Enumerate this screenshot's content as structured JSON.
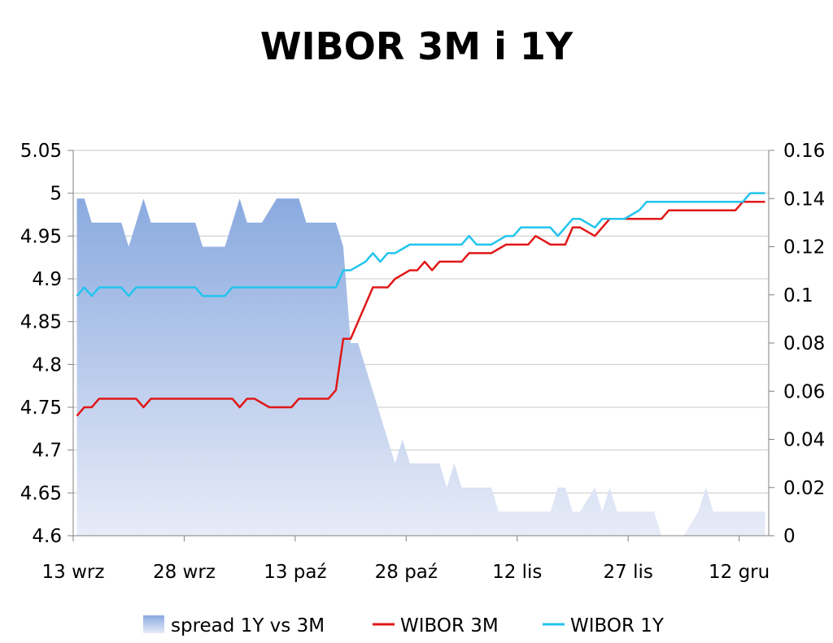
{
  "chart_data": {
    "type": "line",
    "title": "WIBOR 3M i 1Y",
    "x_tick_labels": [
      "13 wrz",
      "28 wrz",
      "13 paź",
      "28 paź",
      "12 lis",
      "27 lis",
      "12 gru"
    ],
    "ylim_left": [
      4.6,
      5.05
    ],
    "yticks_left": [
      "4.6",
      "4.65",
      "4.7",
      "4.75",
      "4.8",
      "4.85",
      "4.9",
      "4.95",
      "5",
      "5.05"
    ],
    "ylim_right": [
      0,
      0.16
    ],
    "yticks_right": [
      "0",
      "0.02",
      "0.04",
      "0.06",
      "0.08",
      "0.1",
      "0.12",
      "0.14",
      "0.16"
    ],
    "grid": true,
    "legend_position": "bottom",
    "series": [
      {
        "name": "spread 1Y vs 3M",
        "type": "area",
        "axis": "right",
        "color": "#8fb0e0",
        "values": [
          0.14,
          0.14,
          0.13,
          0.13,
          0.13,
          0.13,
          0.13,
          0.12,
          0.13,
          0.14,
          0.13,
          0.13,
          0.13,
          0.13,
          0.13,
          0.13,
          0.13,
          0.12,
          0.12,
          0.12,
          0.12,
          0.13,
          0.14,
          0.13,
          0.13,
          0.13,
          0.135,
          0.14,
          0.14,
          0.14,
          0.14,
          0.13,
          0.13,
          0.13,
          0.13,
          0.13,
          0.12,
          0.08,
          0.08,
          0.07,
          0.06,
          0.05,
          0.04,
          0.03,
          0.04,
          0.03,
          0.03,
          0.03,
          0.03,
          0.03,
          0.02,
          0.03,
          0.02,
          0.02,
          0.02,
          0.02,
          0.02,
          0.01,
          0.01,
          0.01,
          0.01,
          0.01,
          0.01,
          0.01,
          0.01,
          0.02,
          0.02,
          0.01,
          0.01,
          0.015,
          0.02,
          0.01,
          0.02,
          0.01,
          0.01,
          0.01,
          0.01,
          0.01,
          0.01,
          0.0,
          0.0,
          0.0,
          0.0,
          0.005,
          0.01,
          0.02,
          0.01,
          0.01,
          0.01,
          0.01,
          0.01,
          0.01,
          0.01,
          0.01
        ]
      },
      {
        "name": "WIBOR 3M",
        "type": "line",
        "axis": "left",
        "color": "#e01818",
        "values": [
          4.74,
          4.75,
          4.75,
          4.76,
          4.76,
          4.76,
          4.76,
          4.76,
          4.76,
          4.75,
          4.76,
          4.76,
          4.76,
          4.76,
          4.76,
          4.76,
          4.76,
          4.76,
          4.76,
          4.76,
          4.76,
          4.76,
          4.75,
          4.76,
          4.76,
          4.755,
          4.75,
          4.75,
          4.75,
          4.75,
          4.76,
          4.76,
          4.76,
          4.76,
          4.76,
          4.77,
          4.83,
          4.83,
          4.85,
          4.87,
          4.89,
          4.89,
          4.89,
          4.9,
          4.905,
          4.91,
          4.91,
          4.92,
          4.91,
          4.92,
          4.92,
          4.92,
          4.92,
          4.93,
          4.93,
          4.93,
          4.93,
          4.935,
          4.94,
          4.94,
          4.94,
          4.94,
          4.95,
          4.945,
          4.94,
          4.94,
          4.94,
          4.96,
          4.96,
          4.955,
          4.95,
          4.96,
          4.97,
          4.97,
          4.97,
          4.97,
          4.97,
          4.97,
          4.97,
          4.97,
          4.98,
          4.98,
          4.98,
          4.98,
          4.98,
          4.98,
          4.98,
          4.98,
          4.98,
          4.98,
          4.99,
          4.99,
          4.99,
          4.99
        ]
      },
      {
        "name": "WIBOR 1Y",
        "type": "line",
        "axis": "left",
        "color": "#22c4ee",
        "values": [
          4.88,
          4.89,
          4.88,
          4.89,
          4.89,
          4.89,
          4.89,
          4.88,
          4.89,
          4.89,
          4.89,
          4.89,
          4.89,
          4.89,
          4.89,
          4.89,
          4.89,
          4.88,
          4.88,
          4.88,
          4.88,
          4.89,
          4.89,
          4.89,
          4.89,
          4.89,
          4.89,
          4.89,
          4.89,
          4.89,
          4.89,
          4.89,
          4.89,
          4.89,
          4.89,
          4.89,
          4.91,
          4.91,
          4.915,
          4.92,
          4.93,
          4.92,
          4.93,
          4.93,
          4.935,
          4.94,
          4.94,
          4.94,
          4.94,
          4.94,
          4.94,
          4.94,
          4.94,
          4.95,
          4.94,
          4.94,
          4.94,
          4.945,
          4.95,
          4.95,
          4.96,
          4.96,
          4.96,
          4.96,
          4.96,
          4.95,
          4.96,
          4.97,
          4.97,
          4.965,
          4.96,
          4.97,
          4.97,
          4.97,
          4.97,
          4.975,
          4.98,
          4.99,
          4.99,
          4.99,
          4.99,
          4.99,
          4.99,
          4.99,
          4.99,
          4.99,
          4.99,
          4.99,
          4.99,
          4.99,
          4.99,
          5.0,
          5.0,
          5.0
        ]
      }
    ]
  }
}
